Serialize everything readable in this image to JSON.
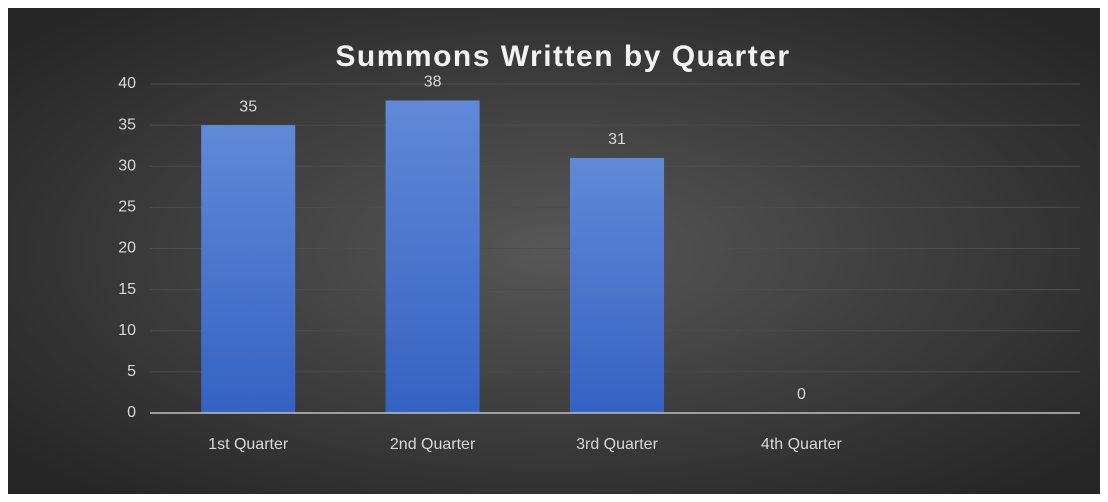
{
  "chart_data": {
    "type": "bar",
    "title": "Summons Written by Quarter",
    "categories": [
      "1st Quarter",
      "2nd Quarter",
      "3rd Quarter",
      "4th Quarter",
      null
    ],
    "values": [
      35,
      38,
      31,
      0,
      null
    ],
    "color": "#4472c4",
    "ylim": [
      0,
      40
    ],
    "yticks": [
      0,
      5,
      10,
      15,
      20,
      25,
      30,
      35,
      40
    ],
    "grid": true
  }
}
